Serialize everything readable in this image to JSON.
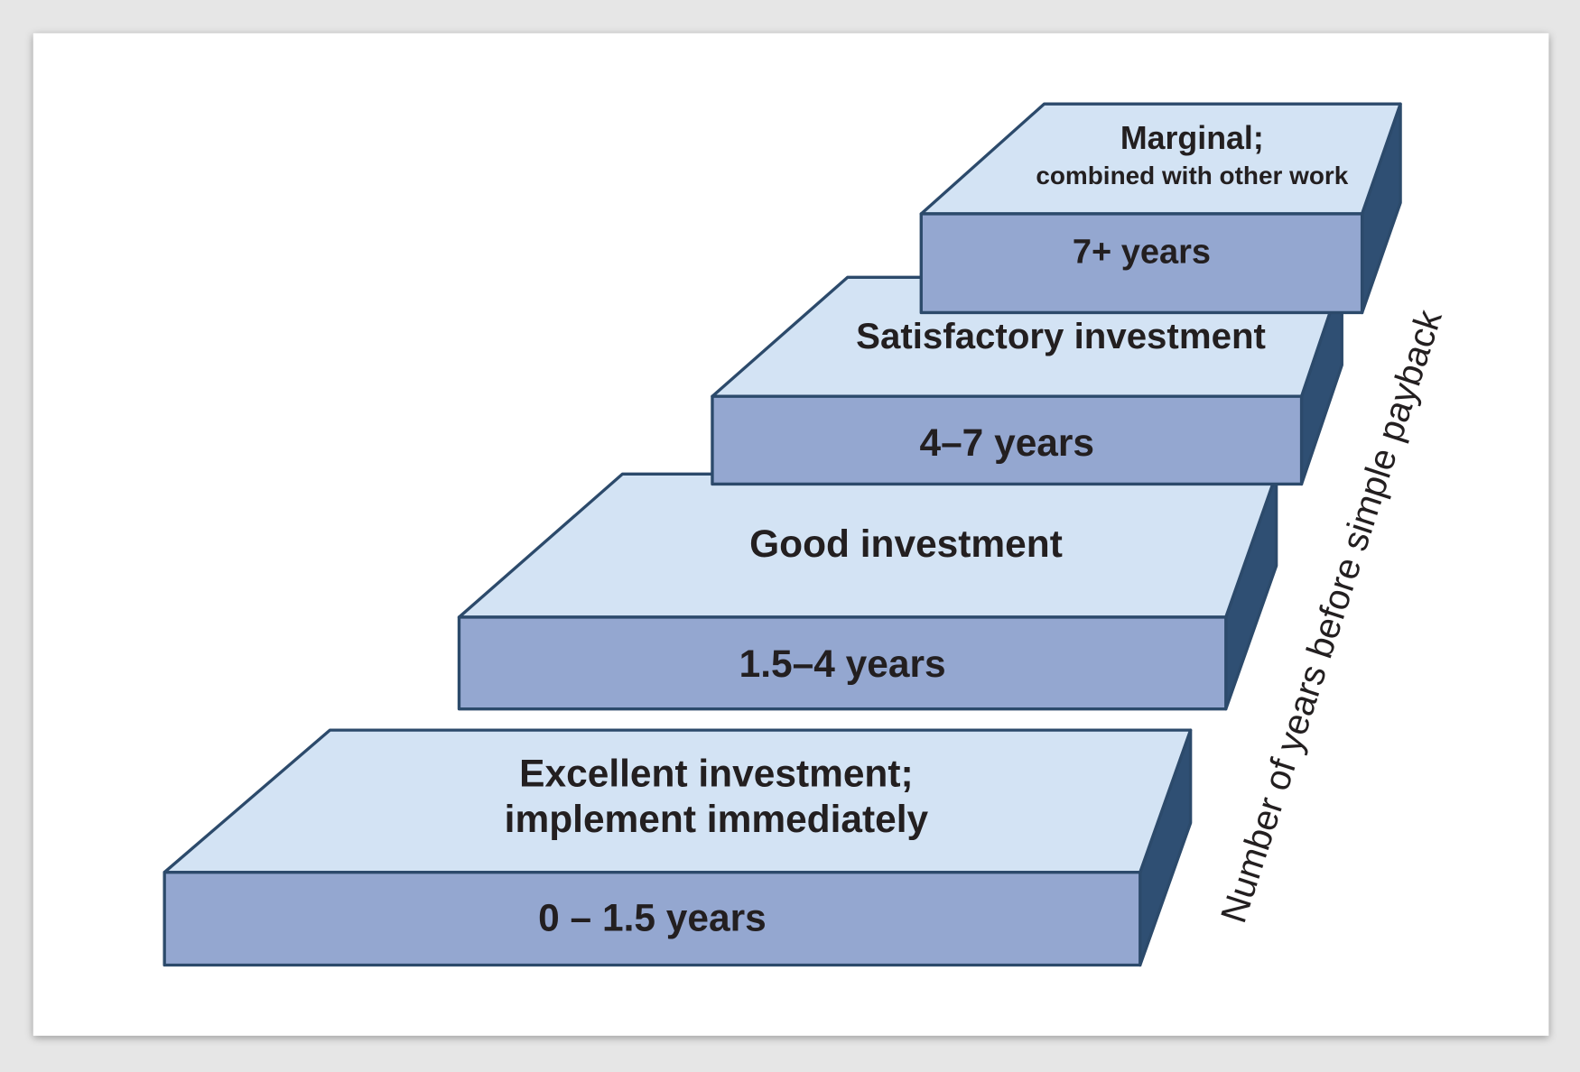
{
  "steps": [
    {
      "label": [
        "Excellent investment;",
        "implement immediately"
      ],
      "years": "0 – 1.5 years"
    },
    {
      "label": [
        "Good investment"
      ],
      "years": "1.5–4 years"
    },
    {
      "label": [
        "Satisfactory investment"
      ],
      "years": "4–7 years"
    },
    {
      "label": [
        "Marginal;",
        "combined with other work"
      ],
      "years": "7+ years"
    }
  ],
  "axis_label": "Number of years before simple payback"
}
